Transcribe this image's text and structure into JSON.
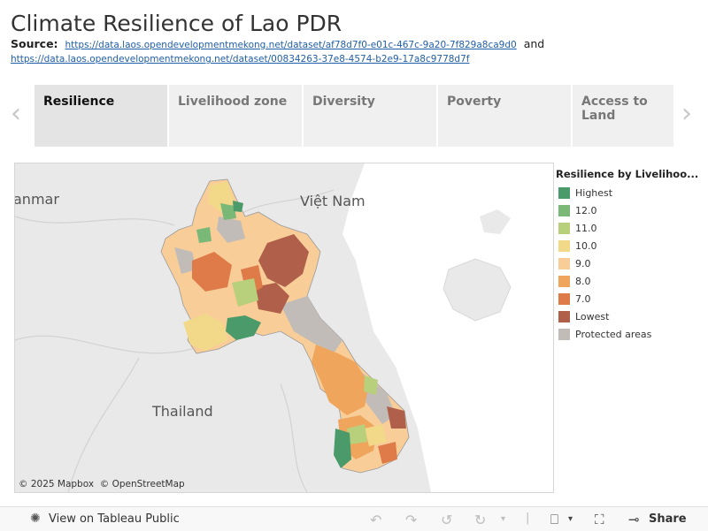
{
  "page": {
    "title": "Climate Resilience of Lao PDR",
    "source_label": "Source",
    "source_link1": "https://data.laos.opendevelopmentmekong.net/dataset/af78d7f0-e01c-467c-9a20-7f829a8ca9d0",
    "source_and": "and",
    "source_link2": "https://data.laos.opendevelopmentmekong.net/dataset/00834263-37e8-4574-b2e9-17a8c9778d7f"
  },
  "tabs": [
    {
      "label": "Resilience",
      "active": true
    },
    {
      "label": "Livelihood zone",
      "active": false
    },
    {
      "label": "Diversity",
      "active": false
    },
    {
      "label": "Poverty",
      "active": false
    },
    {
      "label": "Access to Land",
      "active": false
    }
  ],
  "map": {
    "places": [
      "anmar",
      "Việt Nam",
      "Thailand"
    ],
    "attribution_mapbox": "© 2025 Mapbox",
    "attribution_osm": "© OpenStreetMap"
  },
  "legend": {
    "title": "Resilience by Livelihoo...",
    "items": [
      {
        "label": "Highest",
        "color": "#4a9a6a"
      },
      {
        "label": "12.0",
        "color": "#7ab878"
      },
      {
        "label": "11.0",
        "color": "#b8cf7c"
      },
      {
        "label": "10.0",
        "color": "#f2d98a"
      },
      {
        "label": "9.0",
        "color": "#f8cd98"
      },
      {
        "label": "8.0",
        "color": "#f0a55c"
      },
      {
        "label": "7.0",
        "color": "#df7b48"
      },
      {
        "label": "Lowest",
        "color": "#b0604a"
      },
      {
        "label": "Protected areas",
        "color": "#c2bcb8"
      }
    ]
  },
  "footer": {
    "view_label": "View on Tableau Public",
    "share_label": "Share"
  }
}
